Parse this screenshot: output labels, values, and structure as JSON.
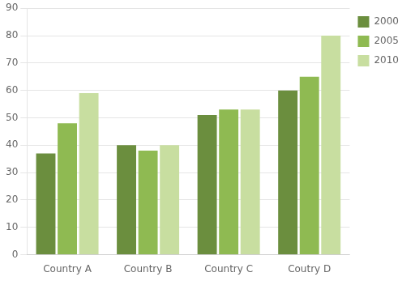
{
  "chart_data": {
    "type": "bar",
    "categories": [
      "Country A",
      "Country B",
      "Country C",
      "Coutry D"
    ],
    "series": [
      {
        "name": "2000",
        "color": "#6b8e3e",
        "values": [
          37,
          40,
          51,
          60
        ]
      },
      {
        "name": "2005",
        "color": "#8fba52",
        "values": [
          48,
          38,
          53,
          65
        ]
      },
      {
        "name": "2010",
        "color": "#c8dea0",
        "values": [
          59,
          40,
          53,
          80
        ]
      }
    ],
    "ylim": [
      0,
      90
    ],
    "yticks": [
      0,
      10,
      20,
      30,
      40,
      50,
      60,
      70,
      80,
      90
    ],
    "grid": true,
    "legend": "right"
  }
}
